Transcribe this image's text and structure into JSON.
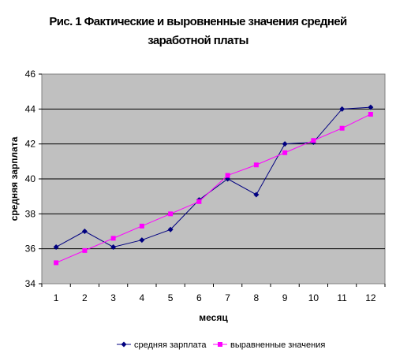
{
  "chart_data": {
    "type": "line",
    "title_lines": [
      "Рис. 1 Фактические и выровненные значения средней",
      "заработной платы"
    ],
    "xlabel": "месяц",
    "ylabel": "средняя зарплата",
    "categories": [
      "1",
      "2",
      "3",
      "4",
      "5",
      "6",
      "7",
      "8",
      "9",
      "10",
      "11",
      "12"
    ],
    "ylim": [
      34,
      46
    ],
    "yticks": [
      "34",
      "36",
      "38",
      "40",
      "42",
      "44",
      "46"
    ],
    "grid": true,
    "legend": "bottom",
    "series": [
      {
        "name": "средняя зарплата",
        "color": "#000080",
        "marker": "diamond",
        "values": [
          36.1,
          37.0,
          36.1,
          36.5,
          37.1,
          38.8,
          40.0,
          39.1,
          42.0,
          42.1,
          44.0,
          44.1
        ]
      },
      {
        "name": "выравненные значения",
        "color": "#ff00ff",
        "marker": "square",
        "values": [
          35.2,
          35.9,
          36.6,
          37.3,
          38.0,
          38.7,
          40.2,
          40.8,
          41.5,
          42.2,
          42.9,
          43.7
        ]
      }
    ],
    "plot_background": "#c0c0c0"
  }
}
